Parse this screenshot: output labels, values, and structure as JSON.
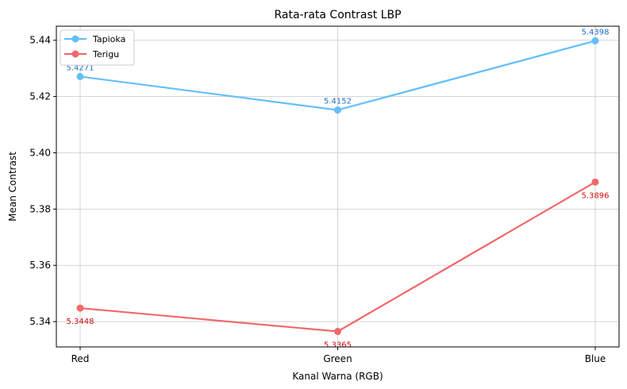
{
  "chart_data": {
    "type": "line",
    "title": "Rata-rata Contrast LBP",
    "xlabel": "Kanal Warna (RGB)",
    "ylabel": "Mean Contrast",
    "categories": [
      "Red",
      "Green",
      "Blue"
    ],
    "ylim": [
      5.331,
      5.445
    ],
    "yticks": [
      5.34,
      5.36,
      5.38,
      5.4,
      5.42,
      5.44
    ],
    "ytick_labels": [
      "5.34",
      "5.36",
      "5.38",
      "5.40",
      "5.42",
      "5.44"
    ],
    "grid": true,
    "legend_position": "top-left",
    "series": [
      {
        "name": "Tapioka",
        "values": [
          5.4271,
          5.4152,
          5.4398
        ],
        "labels": [
          "5.4271",
          "5.4152",
          "5.4398"
        ],
        "color": "#64bff8",
        "label_color": "#1f6fbf",
        "label_position": "above"
      },
      {
        "name": "Terigu",
        "values": [
          5.3448,
          5.3365,
          5.3896
        ],
        "labels": [
          "5.3448",
          "5.3365",
          "5.3896"
        ],
        "color": "#f0696a",
        "label_color": "#cc1010",
        "label_position": "below"
      }
    ]
  }
}
